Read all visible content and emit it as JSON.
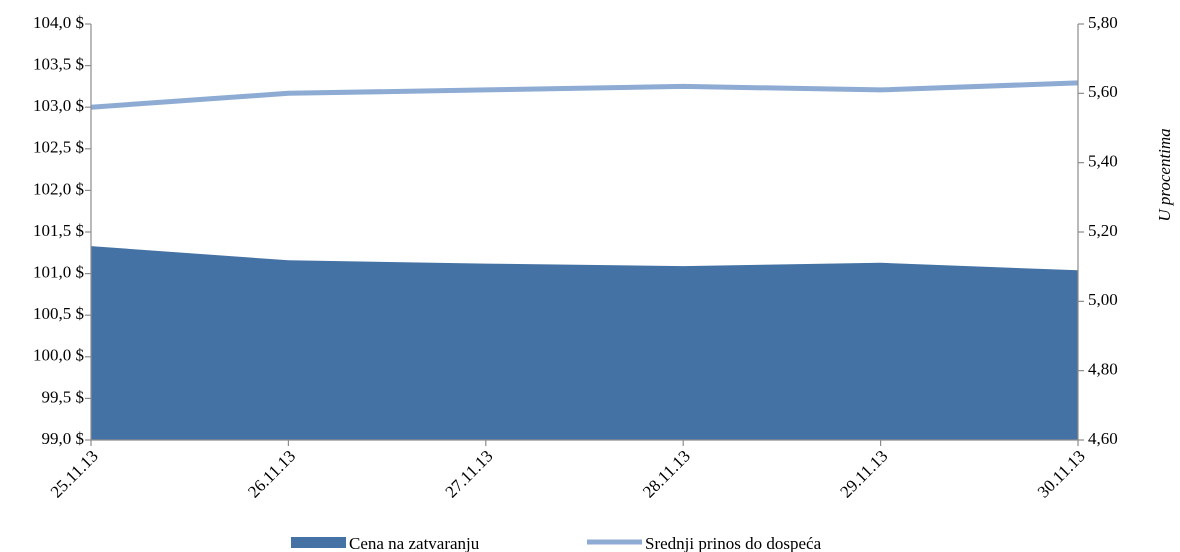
{
  "chart_data": {
    "type": "area",
    "x": [
      "25.11.13",
      "26.11.13",
      "27.11.13",
      "28.11.13",
      "29.11.13",
      "30.11.13"
    ],
    "series": [
      {
        "name": "Cena na zatvaranju",
        "kind": "area",
        "axis": "left",
        "color": "#4472a4",
        "values": [
          101.33,
          101.16,
          101.12,
          101.09,
          101.13,
          101.04
        ]
      },
      {
        "name": "Srednji prinos do dospeća",
        "kind": "line",
        "axis": "right",
        "color": "#8eabd3",
        "values": [
          5.56,
          5.6,
          5.61,
          5.62,
          5.61,
          5.63
        ]
      }
    ],
    "y_left": {
      "min": 99.0,
      "max": 104.0,
      "ticks": [
        "99,0 $",
        "99,5 $",
        "100,0 $",
        "100,5 $",
        "101,0 $",
        "101,5 $",
        "102,0 $",
        "102,5 $",
        "103,0 $",
        "103,5 $",
        "104,0 $"
      ]
    },
    "y_right": {
      "min": 4.6,
      "max": 5.8,
      "label": "U procentima",
      "ticks": [
        "4,60",
        "4,80",
        "5,00",
        "5,20",
        "5,40",
        "5,60",
        "5,80"
      ]
    },
    "grid": false,
    "legend_position": "bottom"
  }
}
